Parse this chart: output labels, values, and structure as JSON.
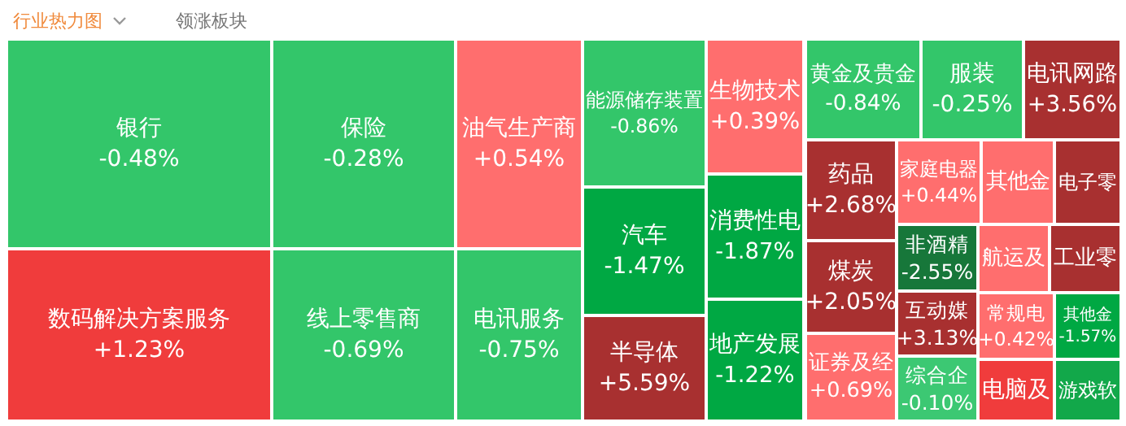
{
  "chart_data": {
    "type": "other",
    "title": "行业热力图",
    "annotations": [
      "领涨板块"
    ],
    "categories": [
      "银行",
      "保险",
      "油气生产商",
      "数码解决方案服务",
      "线上零售商",
      "电讯服务",
      "能源储存装置",
      "汽车",
      "半导体",
      "生物技术",
      "消费性电",
      "地产发展",
      "黄金及贵金",
      "服装",
      "电讯网路",
      "药品",
      "煤炭",
      "证券及经",
      "家庭电器",
      "非酒精",
      "互动媒",
      "综合企",
      "其他金",
      "电子零",
      "航运及",
      "工业零",
      "常规电",
      "电脑及",
      "其他金",
      "游戏软"
    ],
    "values": [
      -0.48,
      -0.28,
      0.54,
      1.23,
      -0.69,
      -0.75,
      -0.86,
      -1.47,
      5.59,
      0.39,
      -1.87,
      -1.22,
      -0.84,
      -0.25,
      3.56,
      2.68,
      2.05,
      0.69,
      0.44,
      -2.55,
      3.13,
      -0.1,
      null,
      null,
      null,
      null,
      0.42,
      null,
      -1.57,
      null
    ],
    "value_labels": [
      "-0.48%",
      "-0.28%",
      "+0.54%",
      "+1.23%",
      "-0.69%",
      "-0.75%",
      "-0.86%",
      "-1.47%",
      "+5.59%",
      "+0.39%",
      "-1.87%",
      "-1.22%",
      "-0.84%",
      "-0.25%",
      "+3.56%",
      "+2.68%",
      "+2.05%",
      "+0.69%",
      "+0.44%",
      "-2.55%",
      "+3.13%",
      "-0.10%",
      null,
      null,
      null,
      null,
      "+0.42%",
      null,
      "-1.57%",
      null
    ],
    "colors": [
      null,
      null,
      null,
      null,
      null,
      null,
      null,
      null,
      null,
      null,
      null,
      null,
      null,
      null,
      null,
      null,
      null,
      null,
      null,
      null,
      null,
      null,
      "#ff6e6e",
      "#a83030",
      "#ff6e6e",
      "#a83030",
      null,
      "#f03c3c",
      null,
      "#12a84a"
    ]
  }
}
